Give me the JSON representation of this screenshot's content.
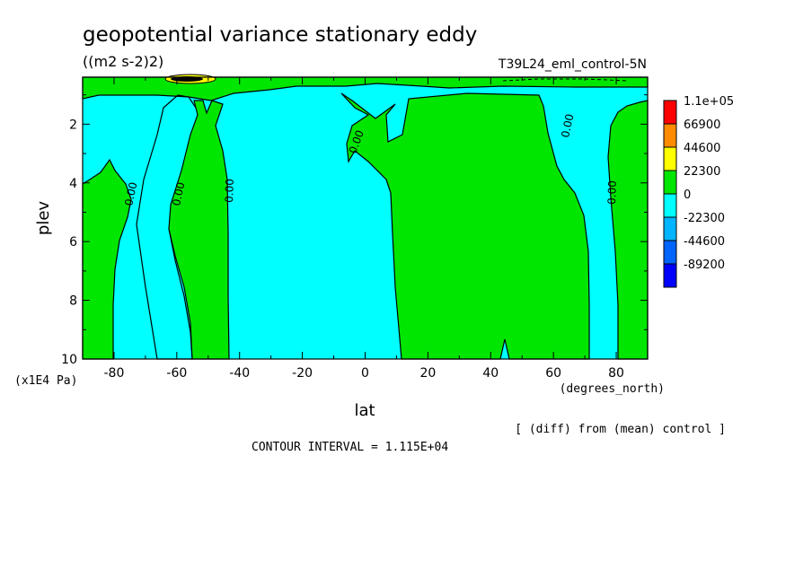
{
  "chart_data": {
    "type": "contour",
    "title": "geopotential variance stationary eddy",
    "units": "((m2 s-2)2)",
    "run_label": "T39L24_eml_control-5N",
    "xlabel": "lat",
    "xunits": "(degrees_north)",
    "ylabel": "plev",
    "yunits": "(x1E4 Pa)",
    "x_ticks": [
      -80,
      -60,
      -40,
      -20,
      0,
      20,
      40,
      60,
      80
    ],
    "x_tick_labels": [
      "-80",
      "-60",
      "-40",
      "-20",
      "0",
      "20",
      "40",
      "60",
      "80"
    ],
    "y_ticks": [
      2,
      4,
      6,
      8,
      10
    ],
    "y_tick_labels": [
      "2",
      "4",
      "6",
      "8",
      "10"
    ],
    "xlim": [
      -90,
      90
    ],
    "ylim": [
      10,
      0.4
    ],
    "y_axis_inverted": true,
    "contour_labels": [
      "0.00",
      "0.00",
      "0.00",
      "0.00",
      "0.00",
      "0.00"
    ],
    "colorbar": {
      "levels": [
        "1.1e+05",
        "66900",
        "44600",
        "22300",
        "0",
        "-22300",
        "-44600",
        "-89200"
      ],
      "colors": [
        "#ff0000",
        "#ff8c00",
        "#ffff00",
        "#00e600",
        "#00ffff",
        "#00b4ff",
        "#0064ff",
        "#0000ff"
      ]
    },
    "footnote": "[ (diff) from (mean) control ]",
    "contour_interval": "CONTOUR INTERVAL = 1.115E+04"
  }
}
